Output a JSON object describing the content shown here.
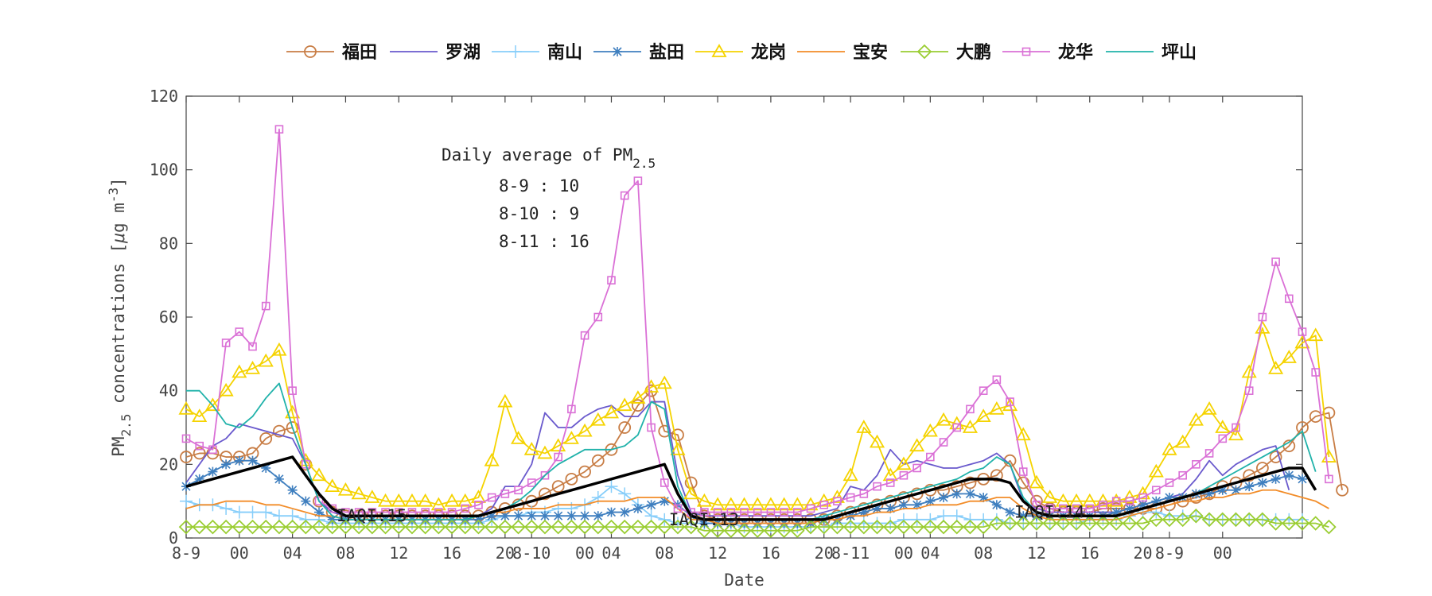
{
  "chart_data": {
    "type": "line",
    "xlabel": "Date",
    "ylabel": "PM",
    "ylabel_sub": "2.5",
    "ylabel_rest": " concentrations [",
    "ylabel_unit_mu": "μ",
    "ylabel_unit_rest": "g m",
    "ylabel_unit_sup": "-3",
    "ylabel_close": "]",
    "ylim": [
      0,
      120
    ],
    "yticks": [
      "0",
      "20",
      "40",
      "60",
      "80",
      "100",
      "120"
    ],
    "xlim": [
      0,
      84
    ],
    "xticks": [
      {
        "x": 0,
        "label": "8-9"
      },
      {
        "x": 4,
        "label": "00"
      },
      {
        "x": 8,
        "label": "04"
      },
      {
        "x": 12,
        "label": "08"
      },
      {
        "x": 16,
        "label": "12"
      },
      {
        "x": 20,
        "label": "16"
      },
      {
        "x": 24,
        "label": "20"
      },
      {
        "x": 26,
        "label": "8-10"
      },
      {
        "x": 30,
        "label": "00"
      },
      {
        "x": 32,
        "label": "04"
      },
      {
        "x": 36,
        "label": "08"
      },
      {
        "x": 40,
        "label": "12"
      },
      {
        "x": 44,
        "label": "16"
      },
      {
        "x": 48,
        "label": "20"
      },
      {
        "x": 50,
        "label": "8-11"
      },
      {
        "x": 54,
        "label": "00"
      },
      {
        "x": 56,
        "label": "04"
      },
      {
        "x": 60,
        "label": "08"
      },
      {
        "x": 64,
        "label": "12"
      },
      {
        "x": 68,
        "label": "16"
      },
      {
        "x": 72,
        "label": "20"
      },
      {
        "x": 74,
        "label": "8-9"
      },
      {
        "x": 78,
        "label": "00"
      }
    ],
    "annotation_title": "Daily average of PM",
    "annotation_title_sub": "2.5",
    "annotations": [
      "8-9 : 10",
      "8-10 : 9",
      "8-11 : 16"
    ],
    "iaqi_labels": [
      {
        "x": 13,
        "y": 6,
        "text": "IAQI:15"
      },
      {
        "x": 38,
        "y": 5,
        "text": "IAQI:13"
      },
      {
        "x": 64,
        "y": 7,
        "text": "IAQI:14"
      }
    ],
    "grid": false,
    "legend_position": "top-center",
    "series": [
      {
        "name": "福田",
        "color": "#C87D45",
        "marker": "circle",
        "values": [
          22,
          23,
          23,
          22,
          22,
          23,
          27,
          29,
          30,
          20,
          10,
          7,
          6,
          6,
          6,
          6,
          6,
          6,
          6,
          6,
          6,
          6,
          6,
          7,
          8,
          9,
          10,
          12,
          14,
          16,
          18,
          21,
          24,
          30,
          36,
          40,
          29,
          28,
          15,
          6,
          5,
          5,
          5,
          5,
          5,
          5,
          5,
          5,
          5,
          6,
          7,
          8,
          9,
          10,
          11,
          12,
          13,
          13,
          14,
          15,
          16,
          17,
          21,
          15,
          10,
          8,
          7,
          7,
          7,
          8,
          8,
          8,
          8,
          8,
          9,
          10,
          11,
          12,
          14,
          15,
          17,
          19,
          22,
          25,
          30,
          33,
          34,
          13
        ]
      },
      {
        "name": "罗湖",
        "color": "#6A5ACD",
        "marker": "none",
        "values": [
          15,
          20,
          25,
          27,
          31,
          30,
          29,
          28,
          27,
          20,
          10,
          7,
          6,
          6,
          6,
          6,
          6,
          6,
          6,
          6,
          6,
          6,
          6,
          8,
          14,
          14,
          20,
          34,
          30,
          30,
          33,
          35,
          36,
          33,
          33,
          37,
          37,
          17,
          7,
          6,
          6,
          6,
          6,
          6,
          6,
          6,
          6,
          6,
          7,
          8,
          14,
          13,
          17,
          24,
          20,
          21,
          20,
          19,
          19,
          20,
          21,
          23,
          20,
          10,
          8,
          7,
          7,
          7,
          7,
          7,
          7,
          8,
          9,
          10,
          11,
          12,
          16,
          21,
          17,
          20,
          22,
          24,
          25,
          13
        ]
      },
      {
        "name": "南山",
        "color": "#87CEFA",
        "marker": "plus",
        "values": [
          10,
          9,
          9,
          8,
          7,
          7,
          7,
          6,
          6,
          5,
          5,
          4,
          4,
          4,
          4,
          4,
          4,
          4,
          4,
          4,
          4,
          4,
          4,
          5,
          6,
          6,
          7,
          7,
          8,
          8,
          9,
          11,
          14,
          12,
          9,
          6,
          5,
          4,
          4,
          4,
          4,
          4,
          3,
          3,
          3,
          3,
          3,
          3,
          3,
          4,
          4,
          4,
          4,
          4,
          5,
          5,
          5,
          6,
          6,
          5,
          5,
          5,
          4,
          4,
          4,
          4,
          4,
          4,
          5,
          5,
          5,
          6,
          7,
          7,
          6,
          6,
          6,
          5,
          5,
          5,
          5,
          5,
          5,
          5,
          5
        ]
      },
      {
        "name": "盐田",
        "color": "#3F7FBF",
        "marker": "star",
        "values": [
          14,
          16,
          18,
          20,
          21,
          21,
          19,
          16,
          13,
          10,
          7,
          5,
          5,
          5,
          5,
          5,
          5,
          5,
          5,
          5,
          5,
          5,
          5,
          6,
          6,
          6,
          6,
          6,
          6,
          6,
          6,
          6,
          7,
          7,
          8,
          9,
          10,
          9,
          6,
          4,
          4,
          4,
          4,
          4,
          4,
          4,
          4,
          4,
          5,
          5,
          6,
          7,
          8,
          8,
          9,
          9,
          10,
          11,
          12,
          12,
          11,
          9,
          7,
          6,
          6,
          6,
          6,
          6,
          6,
          6,
          7,
          8,
          9,
          10,
          11,
          11,
          12,
          12,
          13,
          13,
          14,
          15,
          16,
          17,
          16
        ]
      },
      {
        "name": "龙岗",
        "color": "#F5D300",
        "marker": "triangle",
        "values": [
          35,
          33,
          36,
          40,
          45,
          46,
          48,
          51,
          34,
          21,
          17,
          14,
          13,
          12,
          11,
          10,
          10,
          10,
          10,
          9,
          10,
          10,
          11,
          21,
          37,
          27,
          24,
          23,
          25,
          27,
          29,
          32,
          34,
          36,
          38,
          41,
          42,
          24,
          12,
          10,
          9,
          9,
          9,
          9,
          9,
          9,
          9,
          9,
          10,
          11,
          17,
          30,
          26,
          17,
          20,
          25,
          29,
          32,
          31,
          30,
          33,
          35,
          36,
          28,
          15,
          11,
          10,
          10,
          10,
          10,
          10,
          11,
          12,
          18,
          24,
          26,
          32,
          35,
          30,
          28,
          45,
          57,
          46,
          49,
          53,
          55,
          22
        ]
      },
      {
        "name": "宝安",
        "color": "#F28C28",
        "marker": "none",
        "values": [
          8,
          9,
          9,
          10,
          10,
          10,
          9,
          9,
          8,
          7,
          6,
          6,
          5,
          5,
          5,
          5,
          5,
          5,
          5,
          5,
          5,
          5,
          6,
          7,
          7,
          8,
          8,
          8,
          9,
          9,
          9,
          10,
          10,
          10,
          11,
          11,
          11,
          8,
          5,
          5,
          4,
          4,
          4,
          4,
          4,
          4,
          4,
          4,
          5,
          5,
          6,
          6,
          7,
          7,
          8,
          8,
          9,
          9,
          9,
          10,
          10,
          11,
          11,
          8,
          6,
          5,
          5,
          5,
          5,
          5,
          5,
          6,
          7,
          8,
          9,
          10,
          10,
          11,
          11,
          12,
          12,
          13,
          13,
          12,
          11,
          10,
          8
        ]
      },
      {
        "name": "大鹏",
        "color": "#9ACD32",
        "marker": "diamond",
        "values": [
          3,
          3,
          3,
          3,
          3,
          3,
          3,
          3,
          3,
          3,
          3,
          3,
          3,
          3,
          3,
          3,
          3,
          3,
          3,
          3,
          3,
          3,
          3,
          3,
          3,
          3,
          3,
          3,
          3,
          3,
          3,
          3,
          3,
          3,
          3,
          3,
          3,
          3,
          3,
          2,
          2,
          2,
          2,
          2,
          2,
          2,
          2,
          3,
          3,
          3,
          3,
          3,
          3,
          3,
          3,
          3,
          3,
          3,
          3,
          3,
          3,
          4,
          4,
          4,
          4,
          4,
          4,
          4,
          4,
          4,
          4,
          4,
          4,
          5,
          5,
          5,
          6,
          5,
          5,
          5,
          5,
          5,
          4,
          4,
          4,
          4,
          3
        ]
      },
      {
        "name": "龙华",
        "color": "#DA70D6",
        "marker": "square",
        "values": [
          27,
          25,
          24,
          53,
          56,
          52,
          63,
          111,
          40,
          20,
          10,
          8,
          7,
          7,
          7,
          7,
          7,
          7,
          7,
          7,
          7,
          8,
          9,
          11,
          12,
          13,
          15,
          17,
          22,
          35,
          55,
          60,
          70,
          93,
          97,
          30,
          15,
          8,
          7,
          7,
          7,
          7,
          7,
          7,
          7,
          7,
          7,
          8,
          9,
          10,
          11,
          12,
          14,
          15,
          17,
          19,
          22,
          26,
          30,
          35,
          40,
          43,
          37,
          18,
          9,
          8,
          8,
          8,
          8,
          9,
          10,
          10,
          11,
          13,
          15,
          17,
          20,
          23,
          27,
          30,
          40,
          60,
          75,
          65,
          56,
          45,
          16
        ]
      },
      {
        "name": "坪山",
        "color": "#20B2AA",
        "marker": "none",
        "values": [
          40,
          40,
          36,
          31,
          30,
          33,
          38,
          42,
          30,
          20,
          10,
          6,
          5,
          5,
          5,
          5,
          5,
          5,
          5,
          5,
          5,
          5,
          6,
          7,
          8,
          10,
          13,
          17,
          20,
          22,
          24,
          24,
          24,
          25,
          28,
          37,
          35,
          14,
          6,
          5,
          5,
          5,
          5,
          5,
          5,
          5,
          5,
          5,
          6,
          7,
          8,
          9,
          10,
          11,
          12,
          13,
          14,
          15,
          16,
          18,
          19,
          22,
          20,
          11,
          7,
          6,
          6,
          6,
          6,
          6,
          6,
          7,
          8,
          9,
          10,
          11,
          12,
          14,
          16,
          18,
          20,
          22,
          24,
          26,
          29,
          18
        ]
      },
      {
        "name": "",
        "color": "#000000",
        "marker": "none",
        "thick": true,
        "values": [
          14,
          15,
          16,
          17,
          18,
          19,
          20,
          21,
          22,
          17,
          12,
          8,
          6,
          6,
          6,
          6,
          6,
          6,
          6,
          6,
          6,
          6,
          6,
          7,
          8,
          9,
          10,
          11,
          12,
          13,
          14,
          15,
          16,
          17,
          18,
          19,
          20,
          12,
          6,
          5,
          5,
          5,
          5,
          5,
          5,
          5,
          5,
          5,
          5,
          6,
          7,
          8,
          9,
          10,
          11,
          12,
          13,
          14,
          15,
          16,
          16,
          16,
          15,
          10,
          7,
          6,
          6,
          6,
          6,
          6,
          6,
          7,
          8,
          9,
          10,
          11,
          12,
          13,
          14,
          15,
          16,
          17,
          18,
          19,
          19,
          13
        ]
      }
    ]
  }
}
